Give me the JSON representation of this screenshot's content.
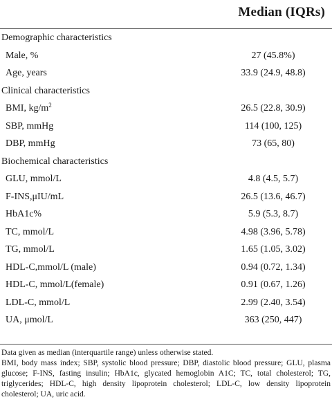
{
  "table": {
    "header": "Median (IQRs)",
    "rows": [
      {
        "label": "Demographic characteristics",
        "value": ""
      },
      {
        "label": "Male, %",
        "value": "27 (45.8%)"
      },
      {
        "label": "Age, years",
        "value": "33.9 (24.9, 48.8)"
      },
      {
        "label": "Clinical characteristics",
        "value": ""
      },
      {
        "label": "BMI, kg/m",
        "label_sup": "2",
        "value": "26.5 (22.8, 30.9)"
      },
      {
        "label": "SBP, mmHg",
        "value": "114 (100, 125)"
      },
      {
        "label": "DBP, mmHg",
        "value": "73 (65, 80)"
      },
      {
        "label": "Biochemical characteristics",
        "value": ""
      },
      {
        "label": "GLU, mmol/L",
        "value": "4.8 (4.5, 5.7)"
      },
      {
        "label": "F-INS,μIU/mL",
        "value": "26.5 (13.6, 46.7)"
      },
      {
        "label": "HbA1c%",
        "value": "5.9 (5.3, 8.7)"
      },
      {
        "label": "TC, mmol/L",
        "value": "4.98 (3.96, 5.78)"
      },
      {
        "label": "TG, mmol/L",
        "value": "1.65 (1.05, 3.02)"
      },
      {
        "label": "HDL-C,mmol/L (male)",
        "value": "0.94 (0.72, 1.34)"
      },
      {
        "label": "HDL-C, mmol/L(female)",
        "value": "0.91 (0.67, 1.26)"
      },
      {
        "label": "LDL-C, mmol/L",
        "value": "2.99 (2.40, 3.54)"
      },
      {
        "label": "UA, μmol/L",
        "value": "363 (250, 447)"
      }
    ]
  },
  "footnotes": {
    "note": "Data given as median (interquartile range) unless otherwise stated.",
    "abbreviations": "BMI, body mass index; SBP, systolic blood pressure; DBP, diastolic blood pressure; GLU, plasma glucose; F-INS, fasting insulin; HbA1c, glycated hemoglobin A1C; TC, total cholesterol; TG, triglycerides; HDL-C, high density lipoprotein cholesterol; LDL-C, low density lipoprotein cholesterol; UA, uric acid."
  }
}
